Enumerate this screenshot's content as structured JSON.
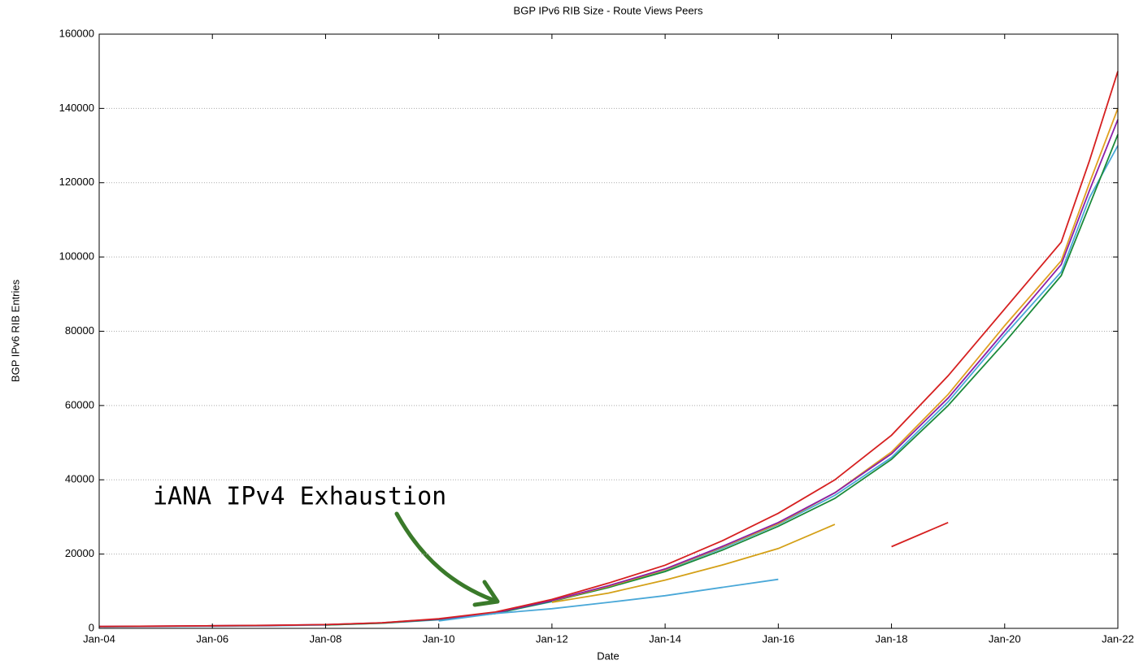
{
  "chart_data": {
    "type": "line",
    "title": "BGP IPv6 RIB Size - Route Views Peers",
    "x_label": "Date",
    "y_label": "BGP IPv6 RIB Entries",
    "annotation": "iANA IPv4 Exhaustion",
    "grid": true,
    "x": [
      "2004-01",
      "2005-01",
      "2006-01",
      "2007-01",
      "2008-01",
      "2009-01",
      "2010-01",
      "2011-01",
      "2012-01",
      "2013-01",
      "2014-01",
      "2015-01",
      "2016-01",
      "2017-01",
      "2018-01",
      "2019-01",
      "2020-01",
      "2021-01",
      "2021-07",
      "2022-01"
    ],
    "series": [
      {
        "color": "#4aa8d8",
        "values": [
          400,
          500,
          600,
          700,
          900,
          1400,
          2300,
          4000,
          7200,
          11200,
          15700,
          21500,
          28000,
          35800,
          46000,
          61000,
          79000,
          96000,
          116000,
          130000
        ]
      },
      {
        "color": "#1a8a3a",
        "values": [
          null,
          null,
          null,
          null,
          900,
          1400,
          2400,
          4000,
          7300,
          11000,
          15300,
          21000,
          27500,
          35000,
          45500,
          60000,
          77000,
          95000,
          114000,
          133000
        ]
      },
      {
        "color": "#e0a020",
        "values": [
          null,
          null,
          null,
          null,
          null,
          null,
          null,
          null,
          7400,
          11300,
          15800,
          21800,
          28200,
          36500,
          47500,
          63000,
          81500,
          99000,
          120000,
          140000
        ]
      },
      {
        "color": "#8b1fa8",
        "values": [
          500,
          600,
          700,
          800,
          1000,
          1500,
          2500,
          4200,
          7500,
          11500,
          16000,
          22000,
          28500,
          36500,
          47000,
          62000,
          80000,
          98000,
          118000,
          137000
        ]
      },
      {
        "color": "#d62020",
        "values": [
          500,
          600,
          700,
          800,
          1000,
          1500,
          2600,
          4400,
          7800,
          12200,
          17000,
          23500,
          31000,
          40000,
          52000,
          68000,
          86000,
          104000,
          126000,
          150000
        ]
      },
      {
        "color": "#4aa8d8",
        "values": [
          null,
          null,
          null,
          null,
          null,
          null,
          2000,
          4000,
          5300,
          7000,
          8800,
          11000,
          13200,
          null,
          null,
          null,
          null,
          null,
          null,
          null
        ]
      },
      {
        "color": "#d4a017",
        "values": [
          null,
          null,
          null,
          null,
          null,
          null,
          null,
          null,
          7000,
          9500,
          13000,
          17000,
          21500,
          28000,
          null,
          null,
          null,
          null,
          null,
          null
        ]
      },
      {
        "color": "#d62020",
        "values": [
          null,
          null,
          null,
          null,
          null,
          null,
          null,
          null,
          null,
          null,
          null,
          null,
          null,
          null,
          22000,
          28500,
          null,
          null,
          null,
          null
        ]
      }
    ],
    "xlim": [
      "2004-01",
      "2022-01"
    ],
    "xticks": [
      {
        "value": "2004-01",
        "label": "Jan-04"
      },
      {
        "value": "2006-01",
        "label": "Jan-06"
      },
      {
        "value": "2008-01",
        "label": "Jan-08"
      },
      {
        "value": "2010-01",
        "label": "Jan-10"
      },
      {
        "value": "2012-01",
        "label": "Jan-12"
      },
      {
        "value": "2014-01",
        "label": "Jan-14"
      },
      {
        "value": "2016-01",
        "label": "Jan-16"
      },
      {
        "value": "2018-01",
        "label": "Jan-18"
      },
      {
        "value": "2020-01",
        "label": "Jan-20"
      },
      {
        "value": "2022-01",
        "label": "Jan-22"
      }
    ],
    "ylim": [
      0,
      160000
    ],
    "yticks": [
      0,
      20000,
      40000,
      60000,
      80000,
      100000,
      120000,
      140000,
      160000
    ]
  }
}
